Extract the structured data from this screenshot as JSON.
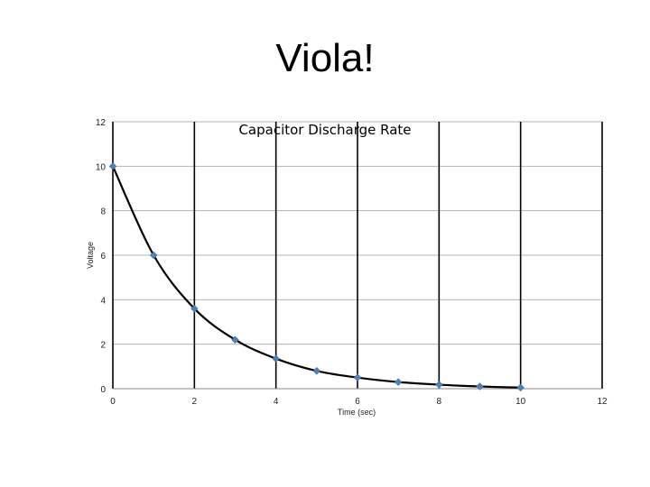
{
  "slide": {
    "title": "Viola!"
  },
  "chart_data": {
    "type": "scatter",
    "title": "Capacitor Discharge Rate",
    "xlabel": "Time (sec)",
    "ylabel": "Voltage",
    "xlim": [
      0,
      12
    ],
    "ylim": [
      0,
      12
    ],
    "x_ticks": [
      0,
      2,
      4,
      6,
      8,
      10,
      12
    ],
    "y_ticks": [
      0,
      2,
      4,
      6,
      8,
      10,
      12
    ],
    "x_gridlines": true,
    "y_gridlines": true,
    "series": [
      {
        "x": [
          0,
          1,
          2,
          3,
          4,
          5,
          6,
          7,
          8,
          9,
          10
        ],
        "y": [
          10,
          6,
          3.6,
          2.2,
          1.35,
          0.8,
          0.5,
          0.3,
          0.18,
          0.1,
          0.05
        ],
        "color": "#4f81bd"
      }
    ],
    "trendline": {
      "type": "smooth",
      "color": "#000000"
    }
  }
}
